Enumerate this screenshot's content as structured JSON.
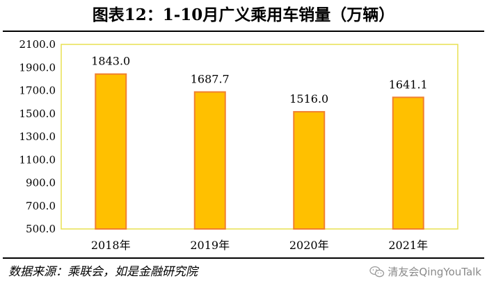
{
  "header": {
    "title": "图表12：1-10月广义乘用车销量（万辆）"
  },
  "footer": {
    "source": "数据来源：乘联会，如是金融研究院",
    "watermark": "清友会QingYouTalk",
    "watermark_icon": "wechat-icon"
  },
  "colors": {
    "bar_fill": "#FFC000",
    "bar_stroke": "#F08030",
    "frame": "#E8E050"
  },
  "chart_data": {
    "type": "bar",
    "title": "图表12：1-10月广义乘用车销量（万辆）",
    "categories": [
      "2018年",
      "2019年",
      "2020年",
      "2021年"
    ],
    "values": [
      1843.0,
      1687.7,
      1516.0,
      1641.1
    ],
    "value_labels": [
      "1843.0",
      "1687.7",
      "1516.0",
      "1641.1"
    ],
    "yticks": [
      "500.0",
      "700.0",
      "900.0",
      "1100.0",
      "1300.0",
      "1500.0",
      "1700.0",
      "1900.0",
      "2100.0"
    ],
    "ylim": [
      500,
      2100
    ],
    "xlabel": "",
    "ylabel": "",
    "grid": false,
    "legend": "none"
  }
}
